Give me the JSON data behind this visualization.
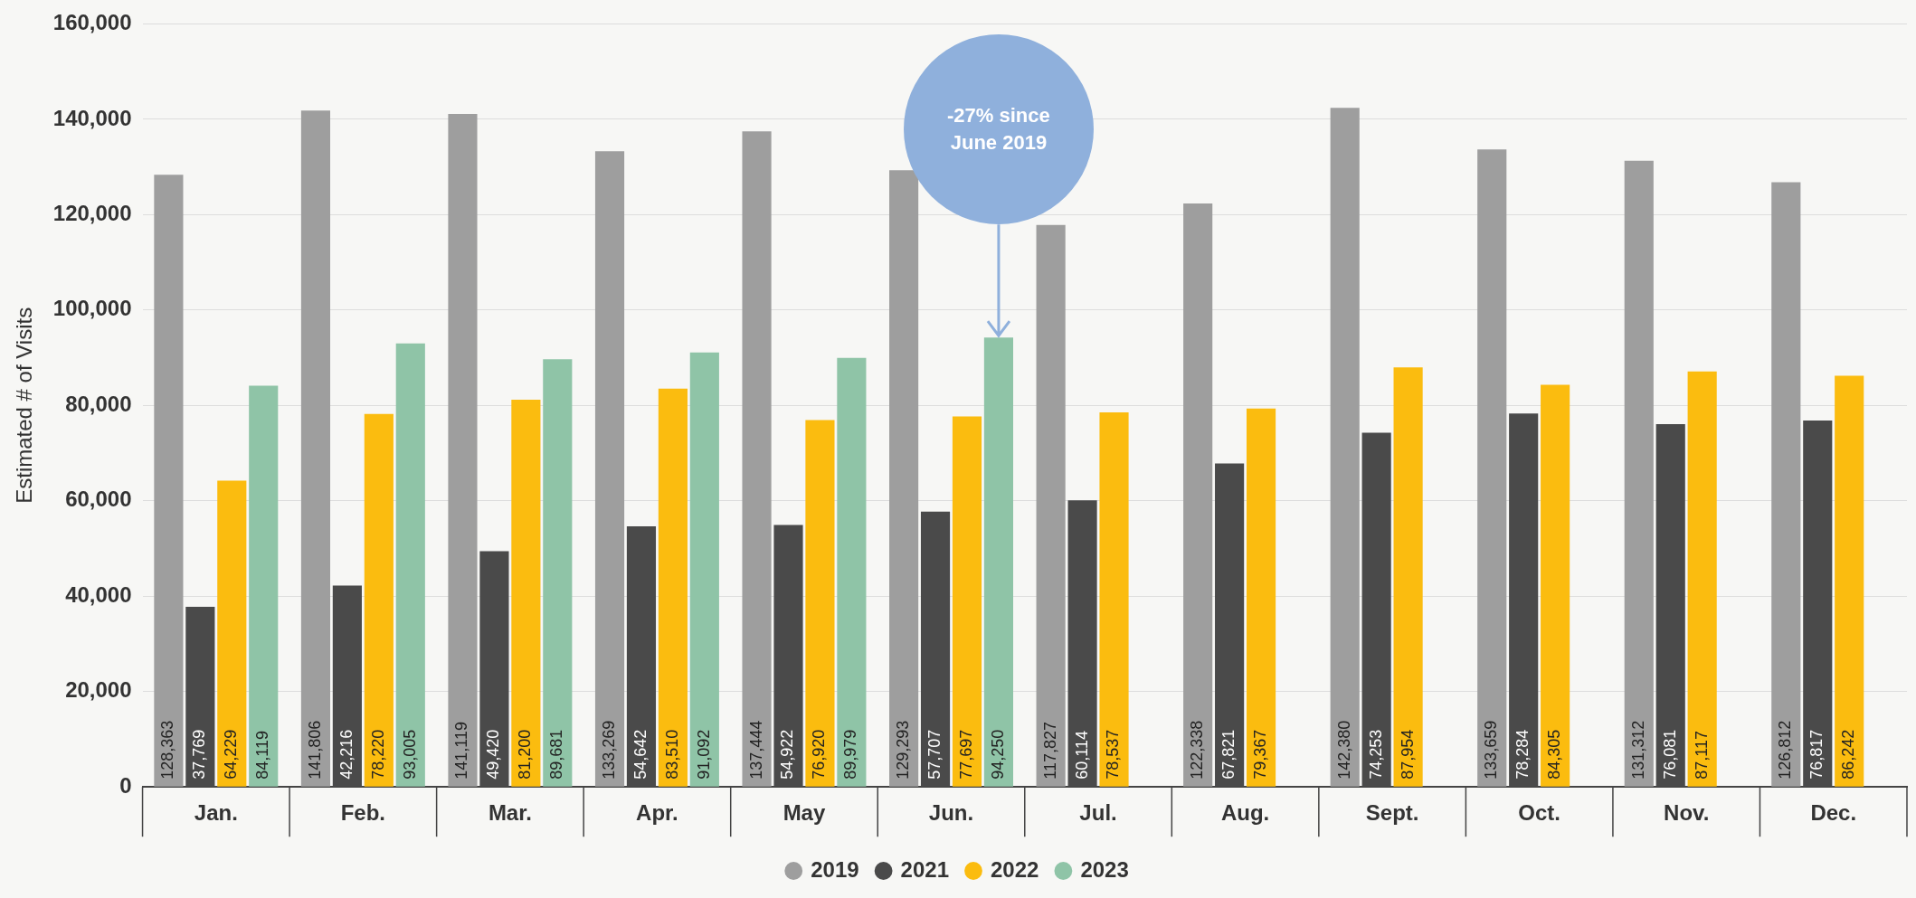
{
  "chart_data": {
    "type": "bar",
    "ylabel": "Estimated # of Visits",
    "categories": [
      "Jan.",
      "Feb.",
      "Mar.",
      "Apr.",
      "May",
      "Jun.",
      "Jul.",
      "Aug.",
      "Sept.",
      "Oct.",
      "Nov.",
      "Dec."
    ],
    "series": [
      {
        "name": "2019",
        "color": "#9e9e9e",
        "values": [
          128363,
          141806,
          141119,
          133269,
          137444,
          129293,
          117827,
          122338,
          142380,
          133659,
          131312,
          126812
        ],
        "value_labels": [
          "128,363",
          "141,806",
          "141,119",
          "133,269",
          "137,444",
          "129,293",
          "117,827",
          "122,338",
          "142,380",
          "133,659",
          "131,312",
          "126,812"
        ]
      },
      {
        "name": "2021",
        "color": "#4a4a4a",
        "values": [
          37769,
          42216,
          49420,
          54642,
          54922,
          57707,
          60114,
          67821,
          74253,
          78284,
          76081,
          76817
        ],
        "value_labels": [
          "37,769",
          "42,216",
          "49,420",
          "54,642",
          "54,922",
          "57,707",
          "60,114",
          "67,821",
          "74,253",
          "78,284",
          "76,081",
          "76,817"
        ]
      },
      {
        "name": "2022",
        "color": "#fbbc0f",
        "values": [
          64229,
          78220,
          81200,
          83510,
          76920,
          77697,
          78537,
          79367,
          87954,
          84305,
          87117,
          86242
        ],
        "value_labels": [
          "64,229",
          "78,220",
          "81,200",
          "83,510",
          "76,920",
          "77,697",
          "78,537",
          "79,367",
          "87,954",
          "84,305",
          "87,117",
          "86,242"
        ]
      },
      {
        "name": "2023",
        "color": "#8fc4a7",
        "values": [
          84119,
          93005,
          89681,
          91092,
          89979,
          94250,
          null,
          null,
          null,
          null,
          null,
          null
        ],
        "value_labels": [
          "84,119",
          "93,005",
          "89,681",
          "91,092",
          "89,979",
          "94,250",
          null,
          null,
          null,
          null,
          null,
          null
        ]
      }
    ],
    "ylim": [
      0,
      160000
    ],
    "yticks": [
      0,
      {
        "value": 20000,
        "label": "20,000"
      },
      {
        "value": 40000,
        "label": "40,000"
      },
      {
        "value": 60000,
        "label": "60,000"
      },
      {
        "value": 80000,
        "label": "80,000"
      },
      {
        "value": 100000,
        "label": "100,000"
      },
      {
        "value": 120000,
        "label": "120,000"
      },
      {
        "value": 140000,
        "label": "140,000"
      },
      {
        "value": 160000,
        "label": "160,000"
      }
    ],
    "grid": "y",
    "legend": "bottom",
    "annotations": [
      "-27% since June 2019"
    ]
  }
}
